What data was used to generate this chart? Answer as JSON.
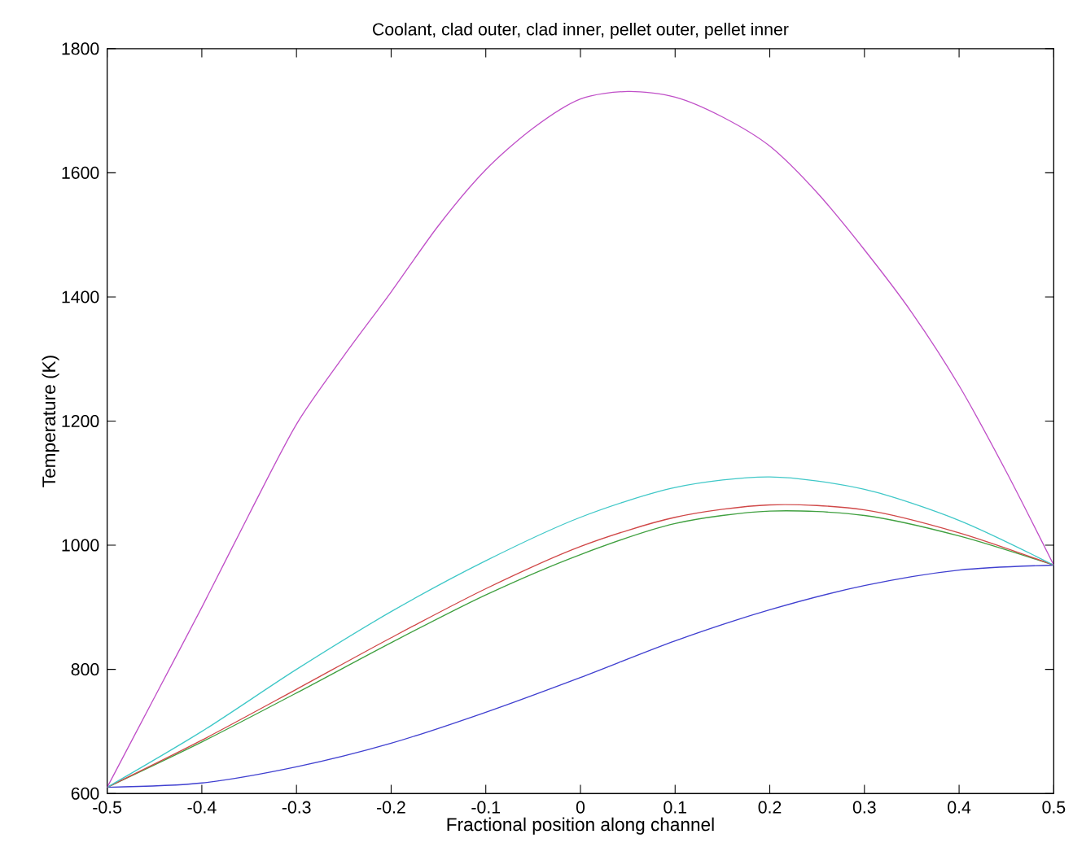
{
  "chart_data": {
    "type": "line",
    "title": "Coolant, clad outer, clad inner, pellet outer, pellet inner",
    "xlabel": "Fractional position along channel",
    "ylabel": "Temperature (K)",
    "x": [
      -0.5,
      -0.4,
      -0.3,
      -0.2,
      -0.1,
      0,
      0.1,
      0.2,
      0.3,
      0.4,
      0.5
    ],
    "series": [
      {
        "color": "#4040d0",
        "values": [
          610,
          617,
          643,
          681,
          731,
          787,
          846,
          896,
          935,
          960,
          968
        ]
      },
      {
        "color": "#40a040",
        "values": [
          610,
          683,
          762,
          843,
          920,
          985,
          1035,
          1055,
          1048,
          1015,
          968
        ]
      },
      {
        "color": "#d04848",
        "values": [
          610,
          686,
          768,
          851,
          930,
          998,
          1045,
          1065,
          1057,
          1020,
          968
        ]
      },
      {
        "color": "#40c8c8",
        "values": [
          610,
          700,
          800,
          893,
          975,
          1045,
          1093,
          1110,
          1090,
          1040,
          968
        ]
      },
      {
        "color": "#c050c8",
        "x": [
          -0.5,
          -0.45,
          -0.4,
          -0.35,
          -0.3,
          -0.25,
          -0.2,
          -0.15,
          -0.1,
          -0.05,
          0,
          0.05,
          0.1,
          0.15,
          0.2,
          0.25,
          0.3,
          0.35,
          0.4,
          0.45,
          0.5
        ],
        "values": [
          610,
          755,
          900,
          1050,
          1195,
          1305,
          1408,
          1515,
          1605,
          1672,
          1719,
          1731,
          1722,
          1690,
          1643,
          1568,
          1476,
          1375,
          1257,
          1118,
          968
        ]
      }
    ],
    "xlim": [
      -0.5,
      0.5
    ],
    "ylim": [
      600,
      1800
    ],
    "xticks": [
      -0.5,
      -0.4,
      -0.3,
      -0.2,
      -0.1,
      0,
      0.1,
      0.2,
      0.3,
      0.4,
      0.5
    ],
    "yticks": [
      600,
      800,
      1000,
      1200,
      1400,
      1600,
      1800
    ],
    "marker": "none",
    "line_style": "solid"
  }
}
